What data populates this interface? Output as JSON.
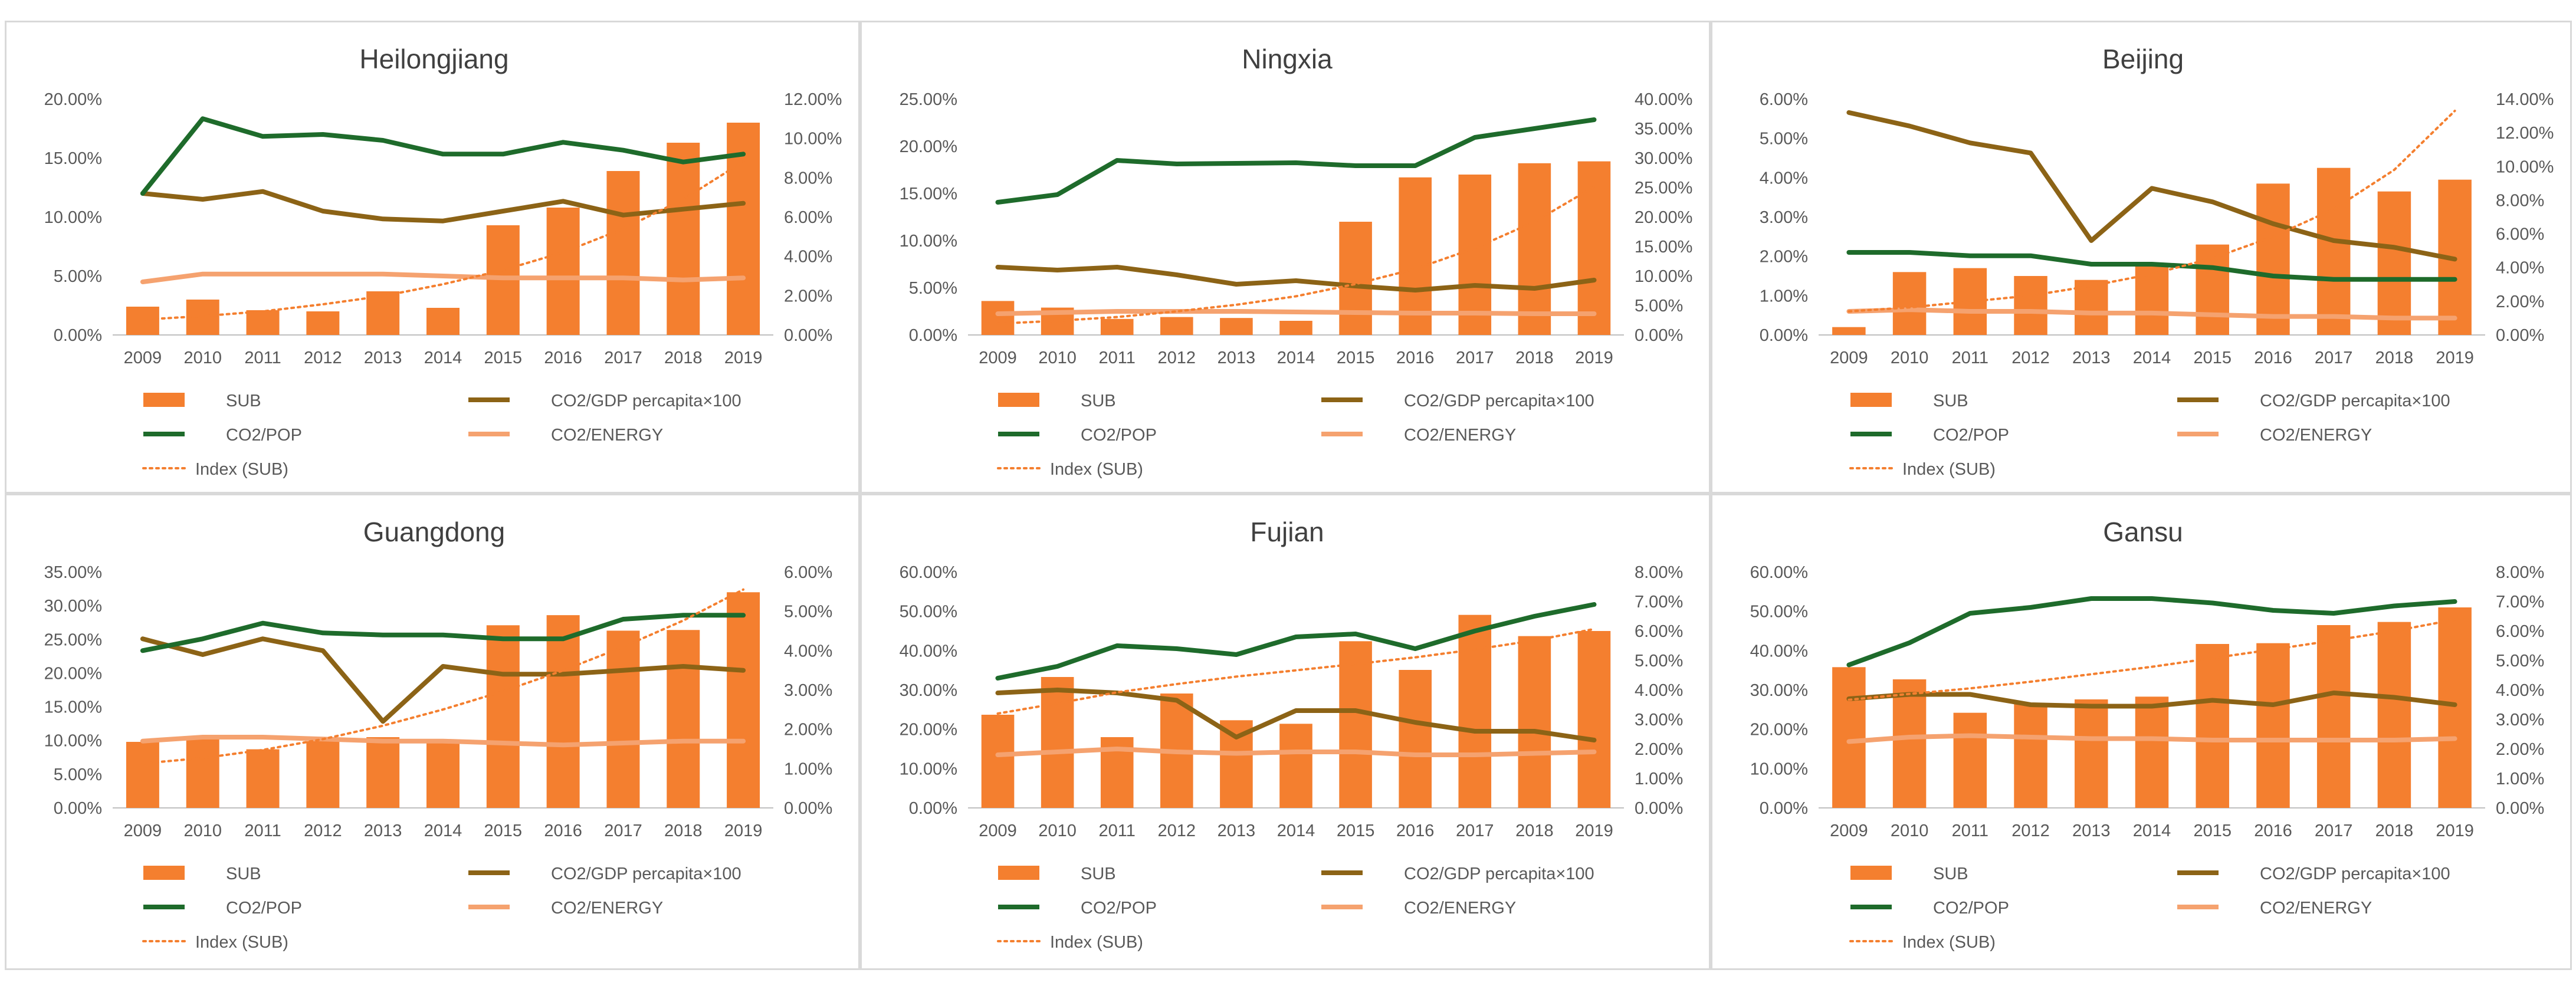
{
  "legend_labels": {
    "sub": "SUB",
    "gdp": "CO2/GDP percapita×100",
    "pop": "CO2/POP",
    "energy": "CO2/ENERGY",
    "index": "Index (SUB)"
  },
  "colors": {
    "sub": "#f47f2f",
    "gdp": "#8c6316",
    "pop": "#1e6b2b",
    "energy": "#f5a26f",
    "index": "#f47f2f",
    "axis": "#bfbfbf",
    "text": "#595959"
  },
  "chart_data": [
    {
      "type": "bar",
      "title": "Heilongjiang",
      "categories": [
        "2009",
        "2010",
        "2011",
        "2012",
        "2013",
        "2014",
        "2015",
        "2016",
        "2017",
        "2018",
        "2019"
      ],
      "ylim_left": [
        0,
        20
      ],
      "left_ticks": [
        "0.00%",
        "5.00%",
        "10.00%",
        "15.00%",
        "20.00%"
      ],
      "ylim_right": [
        0,
        12
      ],
      "right_ticks": [
        "0.00%",
        "2.00%",
        "4.00%",
        "6.00%",
        "8.00%",
        "10.00%",
        "12.00%"
      ],
      "series": [
        {
          "name": "SUB",
          "kind": "bar",
          "axis": "left",
          "values": [
            2.4,
            3.0,
            2.1,
            2.0,
            3.7,
            2.3,
            9.3,
            10.8,
            13.9,
            16.3,
            18.0
          ]
        },
        {
          "name": "CO2/GDP percapita×100",
          "kind": "line",
          "axis": "right",
          "values": [
            7.2,
            6.9,
            7.3,
            6.3,
            5.9,
            5.8,
            6.3,
            6.8,
            6.1,
            6.4,
            6.7
          ]
        },
        {
          "name": "CO2/POP",
          "kind": "line",
          "axis": "right",
          "values": [
            7.2,
            11.0,
            10.1,
            10.2,
            9.9,
            9.2,
            9.2,
            9.8,
            9.4,
            8.8,
            9.2
          ]
        },
        {
          "name": "CO2/ENERGY",
          "kind": "line",
          "axis": "right",
          "values": [
            2.7,
            3.1,
            3.1,
            3.1,
            3.1,
            3.0,
            2.9,
            2.9,
            2.9,
            2.8,
            2.9
          ]
        },
        {
          "name": "Index (SUB)",
          "kind": "trend",
          "axis": "left",
          "values": [
            1.3,
            1.6,
            2.0,
            2.6,
            3.3,
            4.3,
            5.5,
            7.0,
            9.0,
            11.5,
            14.7
          ]
        }
      ]
    },
    {
      "type": "bar",
      "title": "Ningxia",
      "categories": [
        "2009",
        "2010",
        "2011",
        "2012",
        "2013",
        "2014",
        "2015",
        "2016",
        "2017",
        "2018",
        "2019"
      ],
      "ylim_left": [
        0,
        25
      ],
      "left_ticks": [
        "0.00%",
        "5.00%",
        "10.00%",
        "15.00%",
        "20.00%",
        "25.00%"
      ],
      "ylim_right": [
        0,
        40
      ],
      "right_ticks": [
        "0.00%",
        "5.00%",
        "10.00%",
        "15.00%",
        "20.00%",
        "25.00%",
        "30.00%",
        "35.00%",
        "40.00%"
      ],
      "series": [
        {
          "name": "SUB",
          "kind": "bar",
          "axis": "left",
          "values": [
            3.6,
            2.9,
            1.7,
            1.9,
            1.8,
            1.5,
            12.0,
            16.7,
            17.0,
            18.2,
            18.4
          ]
        },
        {
          "name": "CO2/GDP percapita×100",
          "kind": "line",
          "axis": "right",
          "values": [
            11.5,
            11.0,
            11.5,
            10.2,
            8.6,
            9.2,
            8.3,
            7.6,
            8.4,
            7.9,
            9.3
          ]
        },
        {
          "name": "CO2/POP",
          "kind": "line",
          "axis": "right",
          "values": [
            22.5,
            23.8,
            29.6,
            29.0,
            29.1,
            29.2,
            28.7,
            28.7,
            33.5,
            35.0,
            36.5
          ]
        },
        {
          "name": "CO2/ENERGY",
          "kind": "line",
          "axis": "right",
          "values": [
            3.6,
            3.8,
            4.0,
            4.0,
            4.0,
            3.9,
            3.8,
            3.7,
            3.7,
            3.6,
            3.6
          ]
        },
        {
          "name": "Index (SUB)",
          "kind": "trend",
          "axis": "left",
          "values": [
            1.2,
            1.5,
            1.9,
            2.5,
            3.2,
            4.1,
            5.4,
            7.0,
            9.2,
            12.0,
            15.7
          ]
        }
      ]
    },
    {
      "type": "bar",
      "title": "Beijing",
      "categories": [
        "2009",
        "2010",
        "2011",
        "2012",
        "2013",
        "2014",
        "2015",
        "2016",
        "2017",
        "2018",
        "2019"
      ],
      "ylim_left": [
        0,
        6
      ],
      "left_ticks": [
        "0.00%",
        "1.00%",
        "2.00%",
        "3.00%",
        "4.00%",
        "5.00%",
        "6.00%"
      ],
      "ylim_right": [
        0,
        14
      ],
      "right_ticks": [
        "0.00%",
        "2.00%",
        "4.00%",
        "6.00%",
        "8.00%",
        "10.00%",
        "12.00%",
        "14.00%"
      ],
      "series": [
        {
          "name": "SUB",
          "kind": "bar",
          "axis": "left",
          "values": [
            0.2,
            1.6,
            1.7,
            1.5,
            1.4,
            1.8,
            2.3,
            3.85,
            4.25,
            3.65,
            3.95
          ]
        },
        {
          "name": "CO2/GDP percapita×100",
          "kind": "line",
          "axis": "right",
          "values": [
            13.2,
            12.4,
            11.4,
            10.8,
            5.6,
            8.7,
            7.9,
            6.6,
            5.6,
            5.2,
            4.5
          ]
        },
        {
          "name": "CO2/POP",
          "kind": "line",
          "axis": "right",
          "values": [
            4.9,
            4.9,
            4.7,
            4.7,
            4.2,
            4.2,
            4.0,
            3.5,
            3.3,
            3.3,
            3.3
          ]
        },
        {
          "name": "CO2/ENERGY",
          "kind": "line",
          "axis": "right",
          "values": [
            1.4,
            1.5,
            1.4,
            1.4,
            1.3,
            1.3,
            1.2,
            1.1,
            1.1,
            1.0,
            1.0
          ]
        },
        {
          "name": "Index (SUB)",
          "kind": "trend",
          "axis": "left",
          "values": [
            0.6,
            0.7,
            0.85,
            1.0,
            1.25,
            1.55,
            1.95,
            2.5,
            3.2,
            4.2,
            5.7
          ]
        }
      ]
    },
    {
      "type": "bar",
      "title": "Guangdong",
      "categories": [
        "2009",
        "2010",
        "2011",
        "2012",
        "2013",
        "2014",
        "2015",
        "2016",
        "2017",
        "2018",
        "2019"
      ],
      "ylim_left": [
        0,
        35
      ],
      "left_ticks": [
        "0.00%",
        "5.00%",
        "10.00%",
        "15.00%",
        "20.00%",
        "25.00%",
        "30.00%",
        "35.00%"
      ],
      "ylim_right": [
        0,
        6
      ],
      "right_ticks": [
        "0.00%",
        "1.00%",
        "2.00%",
        "3.00%",
        "4.00%",
        "5.00%",
        "6.00%"
      ],
      "series": [
        {
          "name": "SUB",
          "kind": "bar",
          "axis": "left",
          "values": [
            9.8,
            10.6,
            8.7,
            9.9,
            10.5,
            10.1,
            27.1,
            28.6,
            26.3,
            26.4,
            32.0
          ]
        },
        {
          "name": "CO2/GDP percapita×100",
          "kind": "line",
          "axis": "right",
          "values": [
            4.3,
            3.9,
            4.3,
            4.0,
            2.2,
            3.6,
            3.4,
            3.4,
            3.5,
            3.6,
            3.5
          ]
        },
        {
          "name": "CO2/POP",
          "kind": "line",
          "axis": "right",
          "values": [
            4.0,
            4.3,
            4.7,
            4.45,
            4.4,
            4.4,
            4.3,
            4.3,
            4.8,
            4.9,
            4.9
          ]
        },
        {
          "name": "CO2/ENERGY",
          "kind": "line",
          "axis": "right",
          "values": [
            1.7,
            1.8,
            1.8,
            1.75,
            1.7,
            1.7,
            1.65,
            1.6,
            1.65,
            1.7,
            1.7
          ]
        },
        {
          "name": "Index (SUB)",
          "kind": "trend",
          "axis": "left",
          "values": [
            6.6,
            7.4,
            8.6,
            10.2,
            12.2,
            14.6,
            17.3,
            20.4,
            23.9,
            27.8,
            32.4
          ]
        }
      ]
    },
    {
      "type": "bar",
      "title": "Fujian",
      "categories": [
        "2009",
        "2010",
        "2011",
        "2012",
        "2013",
        "2014",
        "2015",
        "2016",
        "2017",
        "2018",
        "2019"
      ],
      "ylim_left": [
        0,
        60
      ],
      "left_ticks": [
        "0.00%",
        "10.00%",
        "20.00%",
        "30.00%",
        "40.00%",
        "50.00%",
        "60.00%"
      ],
      "ylim_right": [
        0,
        8
      ],
      "right_ticks": [
        "0.00%",
        "1.00%",
        "2.00%",
        "3.00%",
        "4.00%",
        "5.00%",
        "6.00%",
        "7.00%",
        "8.00%"
      ],
      "series": [
        {
          "name": "SUB",
          "kind": "bar",
          "axis": "left",
          "values": [
            23.7,
            33.3,
            18.0,
            29.1,
            22.3,
            21.4,
            42.4,
            35.1,
            49.1,
            43.7,
            45.0
          ]
        },
        {
          "name": "CO2/GDP percapita×100",
          "kind": "line",
          "axis": "right",
          "values": [
            3.9,
            4.0,
            3.9,
            3.65,
            2.4,
            3.3,
            3.3,
            2.9,
            2.6,
            2.6,
            2.3
          ]
        },
        {
          "name": "CO2/POP",
          "kind": "line",
          "axis": "right",
          "values": [
            4.4,
            4.8,
            5.5,
            5.4,
            5.2,
            5.8,
            5.9,
            5.4,
            6.0,
            6.5,
            6.9
          ]
        },
        {
          "name": "CO2/ENERGY",
          "kind": "line",
          "axis": "right",
          "values": [
            1.8,
            1.9,
            2.0,
            1.9,
            1.85,
            1.9,
            1.9,
            1.8,
            1.8,
            1.85,
            1.9
          ]
        },
        {
          "name": "Index (SUB)",
          "kind": "trend",
          "axis": "left",
          "values": [
            24.0,
            26.6,
            29.4,
            31.5,
            33.4,
            35.0,
            36.6,
            38.3,
            40.3,
            42.6,
            45.5
          ]
        }
      ]
    },
    {
      "type": "bar",
      "title": "Gansu",
      "categories": [
        "2009",
        "2010",
        "2011",
        "2012",
        "2013",
        "2014",
        "2015",
        "2016",
        "2017",
        "2018",
        "2019"
      ],
      "ylim_left": [
        0,
        60
      ],
      "left_ticks": [
        "0.00%",
        "10.00%",
        "20.00%",
        "30.00%",
        "40.00%",
        "50.00%",
        "60.00%"
      ],
      "ylim_right": [
        0,
        8
      ],
      "right_ticks": [
        "0.00%",
        "1.00%",
        "2.00%",
        "3.00%",
        "4.00%",
        "5.00%",
        "6.00%",
        "7.00%",
        "8.00%"
      ],
      "series": [
        {
          "name": "SUB",
          "kind": "bar",
          "axis": "left",
          "values": [
            35.8,
            32.7,
            24.2,
            26.6,
            27.6,
            28.3,
            41.7,
            41.9,
            46.5,
            47.3,
            51.0
          ]
        },
        {
          "name": "CO2/GDP percapita×100",
          "kind": "line",
          "axis": "right",
          "values": [
            3.7,
            3.85,
            3.85,
            3.5,
            3.45,
            3.45,
            3.65,
            3.5,
            3.9,
            3.75,
            3.5
          ]
        },
        {
          "name": "CO2/POP",
          "kind": "line",
          "axis": "right",
          "values": [
            4.85,
            5.6,
            6.6,
            6.8,
            7.1,
            7.1,
            6.95,
            6.7,
            6.6,
            6.85,
            7.0
          ]
        },
        {
          "name": "CO2/ENERGY",
          "kind": "line",
          "axis": "right",
          "values": [
            2.25,
            2.4,
            2.45,
            2.4,
            2.35,
            2.35,
            2.3,
            2.3,
            2.3,
            2.3,
            2.35
          ]
        },
        {
          "name": "Index (SUB)",
          "kind": "trend",
          "axis": "left",
          "values": [
            27.5,
            29.0,
            30.4,
            32.1,
            34.0,
            35.9,
            38.1,
            40.3,
            42.6,
            45.0,
            47.9
          ]
        }
      ]
    }
  ]
}
